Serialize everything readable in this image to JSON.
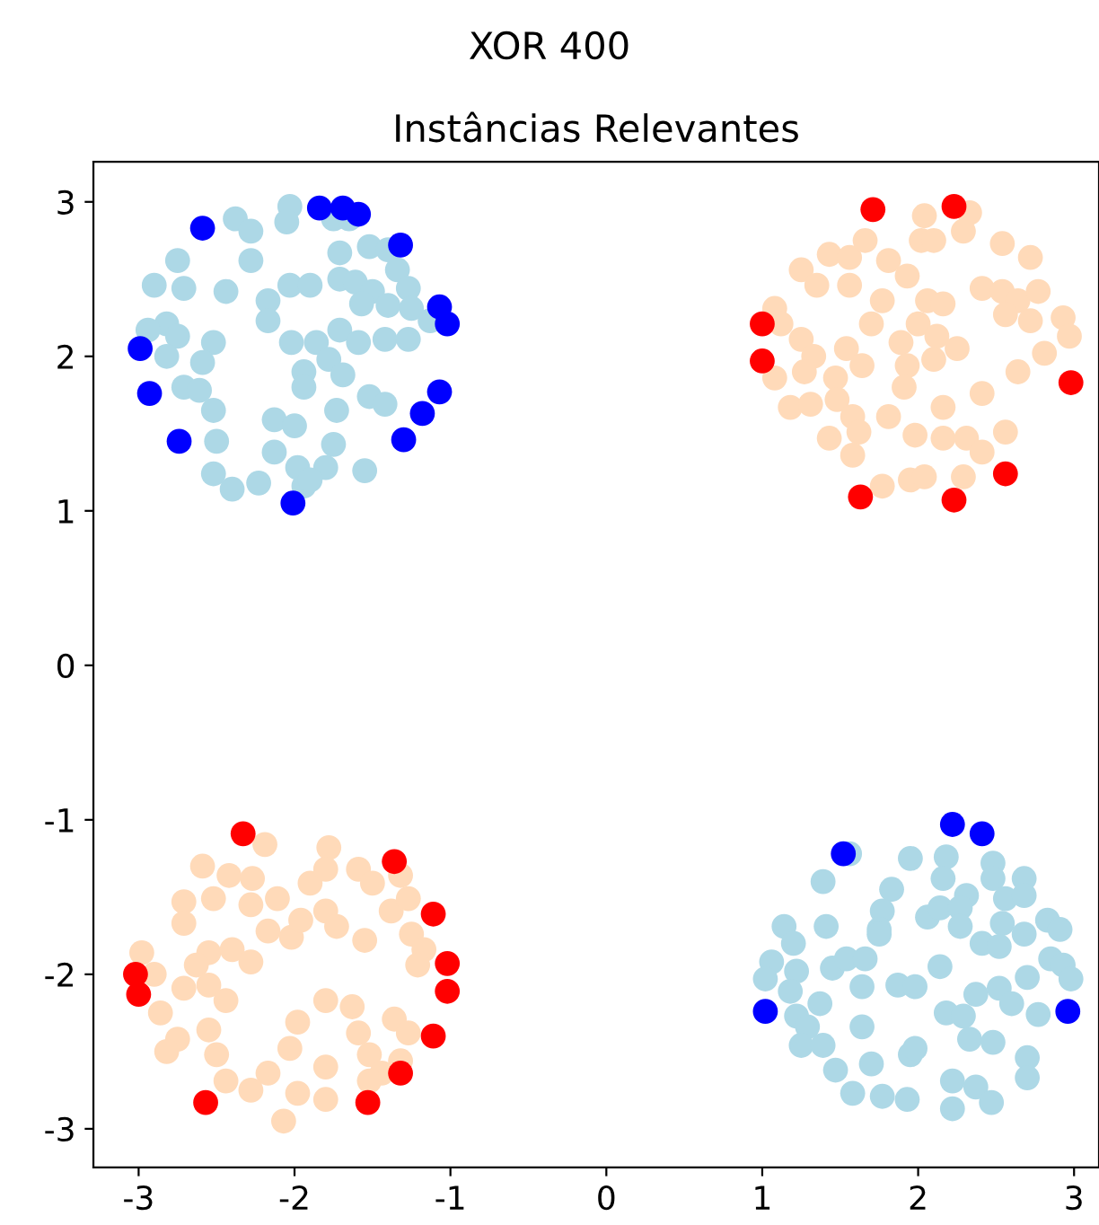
{
  "chart_data": {
    "type": "scatter",
    "title": "XOR 400",
    "subtitle": "Instâncias Relevantes",
    "xlim": [
      -3.29,
      3.16
    ],
    "ylim": [
      -3.25,
      3.26
    ],
    "xticks": [
      -3,
      -2,
      -1,
      0,
      1,
      2,
      3
    ],
    "yticks": [
      -3,
      -2,
      -1,
      0,
      1,
      2,
      3
    ],
    "grid": false,
    "legend": false,
    "marker": "circle",
    "series": [
      {
        "color": "#add8e6",
        "x": [
          -2.38,
          -2.28,
          -2.03,
          -2.05,
          -1.75,
          -1.65,
          -1.52,
          -1.4,
          -1.71,
          -2.28,
          -2.75,
          -2.9,
          -2.71,
          -2.44,
          -2.17,
          -2.03,
          -1.9,
          -1.71,
          -1.61,
          -1.5,
          -1.34,
          -1.27,
          -1.57,
          -1.4,
          -1.25,
          -1.13,
          -2.17,
          -2.82,
          -2.94,
          -2.75,
          -2.52,
          -2.02,
          -1.86,
          -1.71,
          -1.59,
          -1.42,
          -1.27,
          -2.82,
          -2.59,
          -1.94,
          -1.78,
          -1.69,
          -2.71,
          -2.61,
          -1.94,
          -2.52,
          -2.13,
          -2.0,
          -1.73,
          -1.52,
          -1.42,
          -2.5,
          -2.13,
          -1.75,
          -1.98,
          -1.8,
          -1.55,
          -2.52,
          -2.4,
          -2.23,
          -1.94,
          -1.9,
          1.56,
          1.95,
          2.18,
          2.48,
          2.16,
          2.48,
          2.68,
          1.39,
          1.83,
          2.31,
          2.56,
          2.68,
          1.77,
          2.06,
          2.14,
          2.27,
          1.14,
          1.41,
          1.75,
          2.27,
          2.54,
          2.83,
          2.91,
          1.2,
          1.75,
          2.41,
          2.52,
          2.68,
          1.06,
          1.22,
          1.45,
          1.54,
          1.66,
          2.14,
          2.85,
          2.93,
          2.98,
          2.7,
          1.02,
          1.18,
          1.37,
          1.64,
          1.87,
          1.98,
          2.37,
          2.52,
          2.6,
          2.18,
          2.29,
          2.77,
          1.22,
          1.29,
          1.64,
          2.33,
          2.48,
          1.25,
          1.39,
          1.47,
          1.7,
          1.95,
          1.98,
          2.7,
          2.7,
          2.22,
          2.37,
          2.47,
          1.58,
          1.77,
          1.93,
          2.22
        ],
        "values": [
          2.89,
          2.81,
          2.97,
          2.87,
          2.89,
          2.89,
          2.71,
          2.69,
          2.67,
          2.62,
          2.62,
          2.46,
          2.44,
          2.42,
          2.36,
          2.46,
          2.46,
          2.5,
          2.48,
          2.42,
          2.56,
          2.44,
          2.34,
          2.33,
          2.31,
          2.23,
          2.23,
          2.21,
          2.17,
          2.13,
          2.09,
          2.09,
          2.09,
          2.17,
          2.09,
          2.11,
          2.11,
          2.0,
          1.96,
          1.9,
          1.98,
          1.88,
          1.8,
          1.78,
          1.8,
          1.65,
          1.59,
          1.55,
          1.65,
          1.74,
          1.69,
          1.45,
          1.38,
          1.43,
          1.28,
          1.28,
          1.26,
          1.24,
          1.14,
          1.18,
          1.16,
          1.2,
          -1.22,
          -1.25,
          -1.24,
          -1.28,
          -1.38,
          -1.38,
          -1.38,
          -1.4,
          -1.45,
          -1.49,
          -1.51,
          -1.49,
          -1.59,
          -1.63,
          -1.57,
          -1.57,
          -1.69,
          -1.69,
          -1.71,
          -1.69,
          -1.67,
          -1.65,
          -1.71,
          -1.8,
          -1.74,
          -1.8,
          -1.82,
          -1.74,
          -1.92,
          -1.98,
          -1.96,
          -1.9,
          -1.9,
          -1.95,
          -1.9,
          -1.94,
          -2.03,
          -2.02,
          -2.03,
          -2.11,
          -2.19,
          -2.08,
          -2.07,
          -2.08,
          -2.13,
          -2.09,
          -2.19,
          -2.25,
          -2.27,
          -2.26,
          -2.27,
          -2.34,
          -2.34,
          -2.42,
          -2.44,
          -2.46,
          -2.46,
          -2.62,
          -2.58,
          -2.52,
          -2.48,
          -2.54,
          -2.67,
          -2.69,
          -2.73,
          -2.83,
          -2.77,
          -2.79,
          -2.81,
          -2.87
        ]
      },
      {
        "color": "#ffdab9",
        "x": [
          2.04,
          2.33,
          2.02,
          2.1,
          2.29,
          2.54,
          2.72,
          1.43,
          1.25,
          1.35,
          1.56,
          1.66,
          1.81,
          1.93,
          1.56,
          2.41,
          2.54,
          2.64,
          2.77,
          2.56,
          2.72,
          2.93,
          2.97,
          1.08,
          1.12,
          1.25,
          1.77,
          2.06,
          2.16,
          1.7,
          2.0,
          2.12,
          2.25,
          1.89,
          1.54,
          1.33,
          1.27,
          1.64,
          1.93,
          2.1,
          2.64,
          2.81,
          1.08,
          1.47,
          1.91,
          2.41,
          1.18,
          1.31,
          1.48,
          1.58,
          1.81,
          2.16,
          1.62,
          1.43,
          1.98,
          2.16,
          2.31,
          2.41,
          2.56,
          1.58,
          2.29,
          1.77,
          1.95,
          2.04,
          -2.19,
          -1.78,
          -2.59,
          -2.42,
          -2.27,
          -1.9,
          -1.8,
          -1.59,
          -1.5,
          -1.32,
          -2.71,
          -2.52,
          -2.28,
          -2.11,
          -1.8,
          -1.38,
          -1.27,
          -2.71,
          -2.17,
          -2.02,
          -1.96,
          -1.73,
          -1.55,
          -1.25,
          -1.17,
          -2.98,
          -2.55,
          -2.4,
          -2.28,
          -2.9,
          -2.63,
          -1.21,
          -2.71,
          -2.55,
          -2.44,
          -2.86,
          -1.8,
          -1.63,
          -1.36,
          -1.27,
          -1.98,
          -2.75,
          -2.55,
          -2.82,
          -2.5,
          -2.03,
          -1.59,
          -1.52,
          -1.32,
          -2.44,
          -2.17,
          -1.8,
          -1.44,
          -2.28,
          -1.98,
          -1.8,
          -1.52,
          -2.07
        ],
        "values": [
          2.91,
          2.93,
          2.75,
          2.75,
          2.81,
          2.73,
          2.64,
          2.66,
          2.56,
          2.46,
          2.64,
          2.75,
          2.62,
          2.52,
          2.46,
          2.44,
          2.42,
          2.36,
          2.42,
          2.27,
          2.23,
          2.25,
          2.13,
          2.31,
          2.21,
          2.11,
          2.36,
          2.36,
          2.34,
          2.21,
          2.21,
          2.13,
          2.05,
          2.09,
          2.05,
          2.0,
          1.9,
          1.94,
          1.94,
          1.98,
          1.9,
          2.02,
          1.86,
          1.86,
          1.8,
          1.76,
          1.67,
          1.69,
          1.72,
          1.61,
          1.61,
          1.67,
          1.51,
          1.47,
          1.49,
          1.47,
          1.47,
          1.38,
          1.51,
          1.36,
          1.22,
          1.16,
          1.2,
          1.22,
          -1.16,
          -1.18,
          -1.3,
          -1.36,
          -1.38,
          -1.41,
          -1.32,
          -1.32,
          -1.41,
          -1.36,
          -1.53,
          -1.51,
          -1.55,
          -1.51,
          -1.59,
          -1.59,
          -1.51,
          -1.67,
          -1.72,
          -1.76,
          -1.65,
          -1.69,
          -1.78,
          -1.74,
          -1.84,
          -1.86,
          -1.86,
          -1.84,
          -1.92,
          -2.0,
          -1.94,
          -1.94,
          -2.09,
          -2.07,
          -2.17,
          -2.25,
          -2.17,
          -2.21,
          -2.29,
          -2.38,
          -2.31,
          -2.42,
          -2.36,
          -2.5,
          -2.52,
          -2.48,
          -2.38,
          -2.52,
          -2.56,
          -2.69,
          -2.64,
          -2.6,
          -2.64,
          -2.75,
          -2.77,
          -2.81,
          -2.69,
          -2.95
        ]
      },
      {
        "color": "#0000ff",
        "x": [
          -2.59,
          -1.84,
          -1.69,
          -1.59,
          -1.32,
          -1.07,
          -1.02,
          -2.99,
          -2.93,
          -2.74,
          -2.01,
          -1.3,
          -1.18,
          -1.07,
          2.22,
          2.41,
          1.52,
          1.02,
          2.96
        ],
        "values": [
          2.83,
          2.96,
          2.96,
          2.92,
          2.72,
          2.32,
          2.21,
          2.05,
          1.76,
          1.45,
          1.05,
          1.46,
          1.63,
          1.77,
          -1.03,
          -1.09,
          -1.22,
          -2.24,
          -2.24
        ]
      },
      {
        "color": "#ff0000",
        "x": [
          1.71,
          2.23,
          1.0,
          1.0,
          2.98,
          2.56,
          1.63,
          2.23,
          -2.33,
          -1.36,
          -1.11,
          -1.02,
          -3.02,
          -3.0,
          -1.02,
          -1.11,
          -1.32,
          -2.57,
          -1.53
        ],
        "values": [
          2.95,
          2.97,
          2.21,
          1.97,
          1.83,
          1.24,
          1.09,
          1.07,
          -1.09,
          -1.27,
          -1.61,
          -1.93,
          -2.0,
          -2.13,
          -2.11,
          -2.4,
          -2.64,
          -2.83,
          -2.83
        ]
      }
    ]
  }
}
